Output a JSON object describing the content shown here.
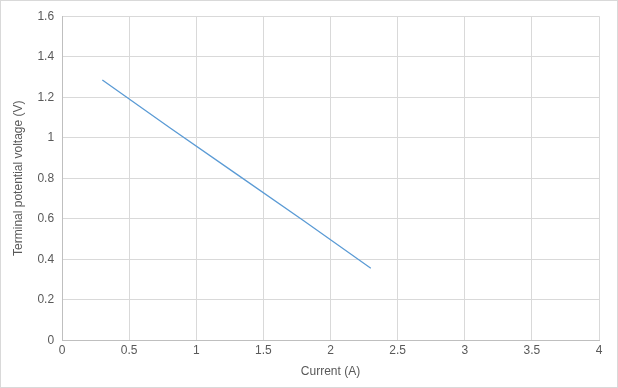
{
  "chart_data": {
    "type": "line",
    "x_label": "Current (A)",
    "y_label": "Terminal potential voltage (V)",
    "x": [
      0.3,
      0.8,
      1.3,
      1.8,
      2.3
    ],
    "values": [
      1.285,
      1.05,
      0.82,
      0.59,
      0.355
    ],
    "color": "#5b9bd5",
    "xlim": [
      0,
      4
    ],
    "xticks": [
      0,
      0.5,
      1,
      1.5,
      2,
      2.5,
      3,
      3.5,
      4
    ],
    "ylim": [
      0,
      1.6
    ],
    "yticks": [
      0,
      0.2,
      0.4,
      0.6,
      0.8,
      1,
      1.2,
      1.4,
      1.6
    ],
    "grid": true
  }
}
